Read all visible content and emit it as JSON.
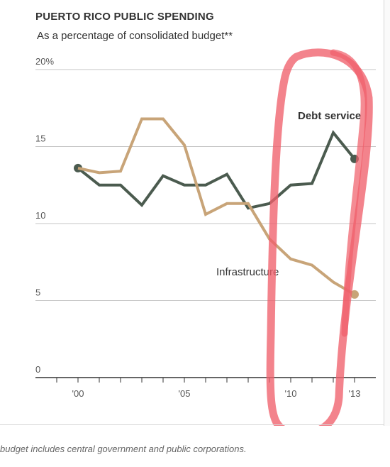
{
  "chart_data": {
    "type": "line",
    "title": "PUERTO RICO PUBLIC SPENDING",
    "subtitle": "As a percentage of consolidated budget**",
    "footnote": "budget includes central government and public corporations.",
    "x": [
      2000,
      2001,
      2002,
      2003,
      2004,
      2005,
      2006,
      2007,
      2008,
      2009,
      2010,
      2011,
      2012,
      2013
    ],
    "xlim": [
      1998,
      2014
    ],
    "ylim": [
      0,
      20
    ],
    "yticks": [
      {
        "value": 0,
        "label": "0"
      },
      {
        "value": 5,
        "label": "5"
      },
      {
        "value": 10,
        "label": "10"
      },
      {
        "value": 15,
        "label": "15"
      },
      {
        "value": 20,
        "label": "20%"
      }
    ],
    "xticks": [
      {
        "value": 2000,
        "label": "'00"
      },
      {
        "value": 2005,
        "label": "'05"
      },
      {
        "value": 2010,
        "label": "'10"
      },
      {
        "value": 2013,
        "label": "'13"
      }
    ],
    "grid": true,
    "series": [
      {
        "name": "Debt service",
        "color": "#4b5b4f",
        "values": [
          13.6,
          12.5,
          12.5,
          11.2,
          13.1,
          12.5,
          12.5,
          13.2,
          11.0,
          11.3,
          12.5,
          12.6,
          15.9,
          14.2
        ],
        "end_marker": true,
        "start_marker": true
      },
      {
        "name": "Infrastructure",
        "color": "#c8a478",
        "values": [
          13.6,
          13.3,
          13.4,
          16.8,
          16.8,
          15.1,
          10.6,
          11.3,
          11.3,
          9.0,
          7.7,
          7.3,
          6.2,
          5.4
        ],
        "end_marker": true,
        "start_marker": false
      }
    ],
    "annotation": {
      "color": "#f0606b",
      "description": "hand-drawn red oval around 2010–2013"
    }
  }
}
